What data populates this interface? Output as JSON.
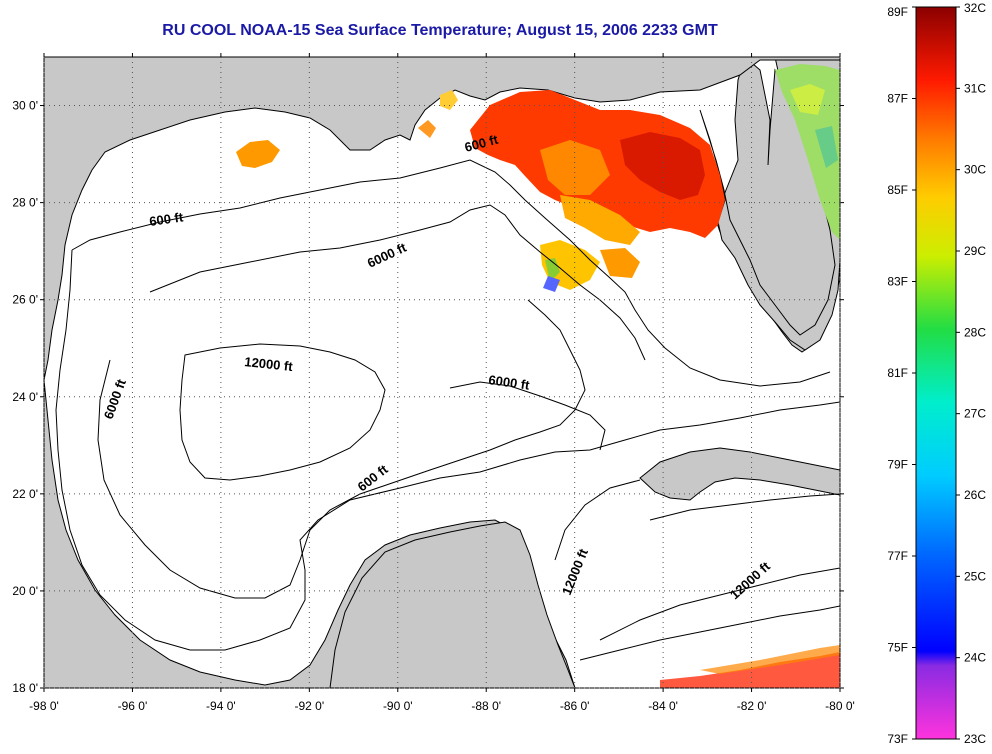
{
  "title": "RU COOL  NOAA-15  Sea Surface Temperature;  August 15, 2006 2233 GMT",
  "colors": {
    "land": "#c8c8c8",
    "ocean": "#ffffff",
    "title": "#1a1aa6"
  },
  "axes": {
    "lat_ticks": [
      "18 0'",
      "20 0'",
      "22 0'",
      "24 0'",
      "26 0'",
      "28 0'",
      "30 0'"
    ],
    "lon_ticks": [
      "-98 0'",
      "-96 0'",
      "-94 0'",
      "-92 0'",
      "-90 0'",
      "-88 0'",
      "-86 0'",
      "-84 0'",
      "-82 0'",
      "-80 0'"
    ],
    "lat_range": [
      18,
      31
    ],
    "lon_range": [
      -98,
      -80
    ],
    "grid": "dotted"
  },
  "contour_labels": [
    "600 ft",
    "600 ft",
    "600 ft",
    "6000 ft",
    "6000 ft",
    "6000 ft",
    "12000 ft",
    "12000 ft",
    "12000 ft"
  ],
  "colorbar": {
    "fahrenheit": [
      "89F",
      "87F",
      "85F",
      "83F",
      "81F",
      "79F",
      "77F",
      "75F",
      "73F"
    ],
    "celsius": [
      "32C",
      "31C",
      "30C",
      "29C",
      "28C",
      "27C",
      "26C",
      "25C",
      "24C",
      "23C"
    ],
    "range_c": [
      23,
      32
    ]
  }
}
